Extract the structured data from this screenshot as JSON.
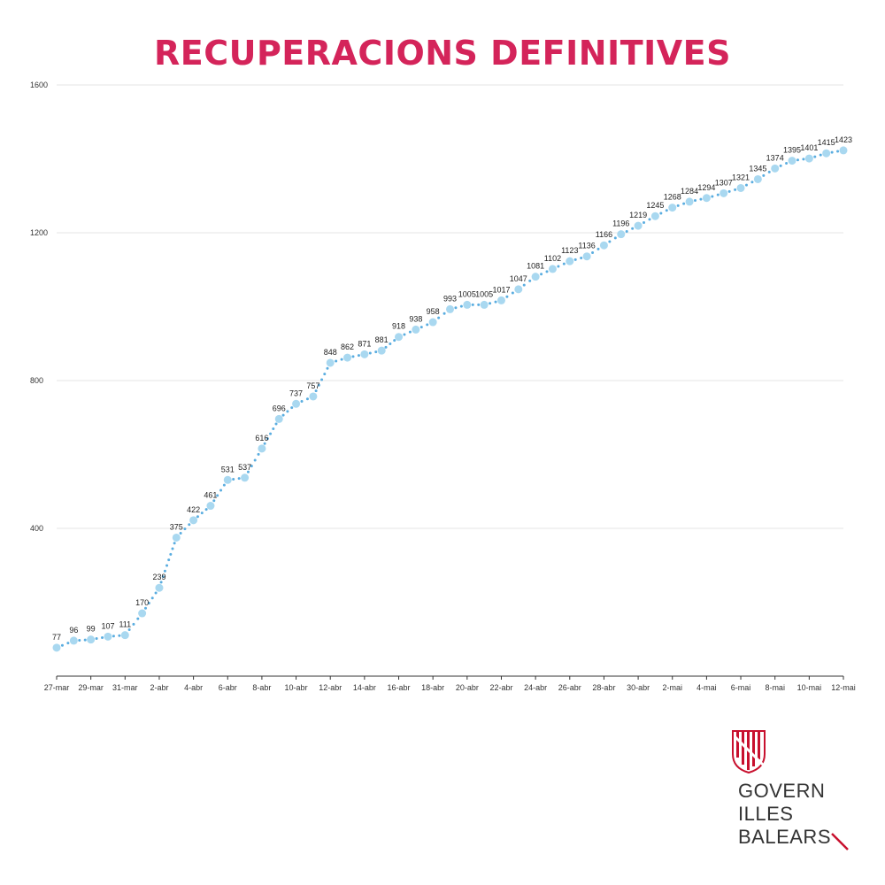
{
  "title": "RECUPERACIONS DEFINITIVES",
  "colors": {
    "title": "#d4245a",
    "marker": "#a9d8f0",
    "connector": "#5aade0",
    "grid": "#e6e6e6",
    "axis": "#333333",
    "logo_red": "#c8102e"
  },
  "logo": {
    "icon": "balearic-coat-of-arms-icon",
    "line1": "GOVERN",
    "line2": "ILLES",
    "line3": "BALEARS"
  },
  "chart_data": {
    "type": "line",
    "title": "RECUPERACIONS DEFINITIVES",
    "xlabel": "",
    "ylabel": "",
    "ylim": [
      0,
      1600
    ],
    "yticks": [
      400,
      800,
      1200,
      1600
    ],
    "grid": true,
    "categories": [
      "27-mar",
      "28-mar",
      "29-mar",
      "30-mar",
      "31-mar",
      "1-abr",
      "2-abr",
      "3-abr",
      "4-abr",
      "5-abr",
      "6-abr",
      "7-abr",
      "8-abr",
      "9-abr",
      "10-abr",
      "11-abr",
      "12-abr",
      "13-abr",
      "14-abr",
      "15-abr",
      "16-abr",
      "17-abr",
      "18-abr",
      "19-abr",
      "20-abr",
      "21-abr",
      "22-abr",
      "23-abr",
      "24-abr",
      "25-abr",
      "26-abr",
      "27-abr",
      "28-abr",
      "29-abr",
      "30-abr",
      "1-mai",
      "2-mai",
      "3-mai",
      "4-mai",
      "5-mai",
      "6-mai",
      "7-mai",
      "8-mai",
      "9-mai",
      "10-mai",
      "11-mai",
      "12-mai"
    ],
    "x_tick_labels": [
      "27-mar",
      "29-mar",
      "31-mar",
      "2-abr",
      "4-abr",
      "6-abr",
      "8-abr",
      "10-abr",
      "12-abr",
      "14-abr",
      "16-abr",
      "18-abr",
      "20-abr",
      "22-abr",
      "24-abr",
      "26-abr",
      "28-abr",
      "30-abr",
      "2-mai",
      "4-mai",
      "6-mai",
      "8-mai",
      "10-mai",
      "12-mai"
    ],
    "values": [
      77,
      96,
      99,
      107,
      111,
      170,
      239,
      375,
      422,
      461,
      531,
      537,
      616,
      696,
      737,
      757,
      848,
      862,
      871,
      881,
      918,
      938,
      958,
      993,
      1005,
      1005,
      1017,
      1047,
      1081,
      1102,
      1123,
      1136,
      1166,
      1196,
      1219,
      1245,
      1268,
      1284,
      1294,
      1307,
      1321,
      1345,
      1374,
      1395,
      1401,
      1415,
      1423
    ]
  }
}
